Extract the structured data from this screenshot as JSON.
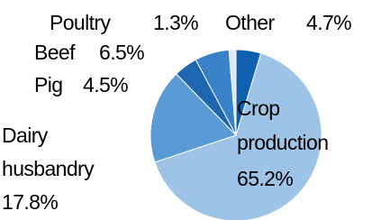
{
  "chart_data": {
    "type": "pie",
    "categories": [
      "Other",
      "Crop production",
      "Dairy husbandry",
      "Pig",
      "Beef",
      "Poultry"
    ],
    "values": [
      4.7,
      65.2,
      17.8,
      4.5,
      6.5,
      1.3
    ],
    "value_labels": [
      "4.7%",
      "65.2%",
      "17.8%",
      "4.5%",
      "6.5%",
      "1.3%"
    ],
    "colors": [
      "#0f5fae",
      "#9dc3e6",
      "#5b9bd5",
      "#1f66b0",
      "#3a82c8",
      "#dce8f4"
    ]
  }
}
